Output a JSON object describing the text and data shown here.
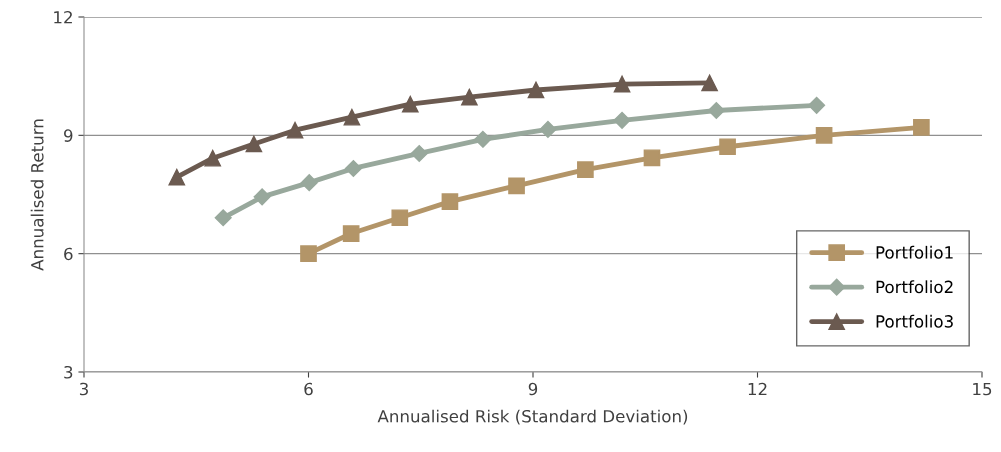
{
  "chart_data": {
    "type": "line",
    "xlabel": "Annualised Risk (Standard Deviation)",
    "ylabel": "Annualised Return",
    "xlim": [
      3,
      15
    ],
    "xticks": [
      3,
      6,
      9,
      12,
      15
    ],
    "ylim": [
      3,
      12
    ],
    "yticks": [
      3,
      6,
      9,
      12
    ],
    "grid": "y",
    "legend": "right",
    "line_style": "solid",
    "series": [
      {
        "name": "Portfolio1",
        "color": "#b39568",
        "marker": "square",
        "x": [
          6.0,
          6.57,
          7.22,
          7.89,
          8.78,
          9.7,
          10.59,
          11.6,
          12.89,
          14.19
        ],
        "values": [
          6.0,
          6.51,
          6.91,
          7.32,
          7.72,
          8.13,
          8.43,
          8.71,
          9.0,
          9.2
        ]
      },
      {
        "name": "Portfolio2",
        "color": "#98a89c",
        "marker": "diamond",
        "x": [
          4.86,
          5.38,
          6.01,
          6.6,
          7.48,
          8.33,
          9.2,
          10.19,
          11.45,
          12.79
        ],
        "values": [
          6.91,
          7.44,
          7.8,
          8.16,
          8.54,
          8.9,
          9.15,
          9.38,
          9.63,
          9.76
        ]
      },
      {
        "name": "Portfolio3",
        "color": "#6b5a50",
        "marker": "triangle",
        "x": [
          4.24,
          4.72,
          5.27,
          5.82,
          6.58,
          7.36,
          8.15,
          9.04,
          10.19,
          11.36
        ],
        "values": [
          7.94,
          8.42,
          8.78,
          9.13,
          9.46,
          9.79,
          9.97,
          10.15,
          10.3,
          10.33
        ]
      }
    ]
  }
}
